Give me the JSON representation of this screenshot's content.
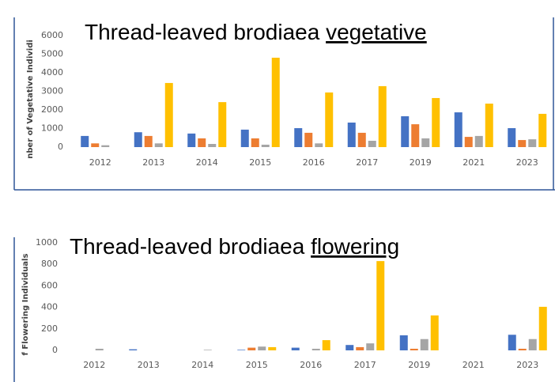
{
  "chart_data": [
    {
      "type": "bar",
      "title": "Thread-leaved brodiaea",
      "title_underlined": "vegetative",
      "ylabel": "nber of Vegetative Individi",
      "categories": [
        "2012",
        "2013",
        "2014",
        "2015",
        "2016",
        "2017",
        "2019",
        "2021",
        "2023"
      ],
      "series": [
        {
          "color": "#4472c4",
          "values": [
            600,
            800,
            730,
            940,
            1020,
            1320,
            1660,
            1870,
            1020
          ]
        },
        {
          "color": "#ed7d31",
          "values": [
            200,
            600,
            470,
            470,
            770,
            770,
            1230,
            550,
            380
          ]
        },
        {
          "color": "#a5a5a5",
          "values": [
            100,
            200,
            170,
            130,
            200,
            340,
            470,
            600,
            420
          ]
        },
        {
          "color": "#ffc000",
          "values": [
            0,
            3450,
            2420,
            4810,
            2940,
            3280,
            2640,
            2340,
            1790
          ]
        }
      ],
      "ylim": [
        0,
        6000
      ],
      "yticks": [
        0,
        1000,
        2000,
        3000,
        4000,
        5000,
        6000
      ],
      "grid": false
    },
    {
      "type": "bar",
      "title": "Thread-leaved brodiaea",
      "title_underlined": "flowering",
      "ylabel": "f Flowering Individuals",
      "categories": [
        "2012",
        "2013",
        "2014",
        "2015",
        "2016",
        "2017",
        "2019",
        "2021",
        "2023"
      ],
      "series": [
        {
          "color": "#4472c4",
          "values": [
            0,
            10,
            0,
            5,
            25,
            50,
            140,
            0,
            145
          ]
        },
        {
          "color": "#ed7d31",
          "values": [
            0,
            0,
            0,
            25,
            0,
            30,
            15,
            0,
            15
          ]
        },
        {
          "color": "#a5a5a5",
          "values": [
            15,
            0,
            5,
            35,
            15,
            65,
            105,
            0,
            105
          ]
        },
        {
          "color": "#ffc000",
          "values": [
            0,
            0,
            0,
            30,
            95,
            830,
            325,
            0,
            405
          ]
        }
      ],
      "ylim": [
        0,
        1000
      ],
      "yticks": [
        0,
        200,
        400,
        600,
        800,
        1000
      ],
      "grid": false
    }
  ]
}
